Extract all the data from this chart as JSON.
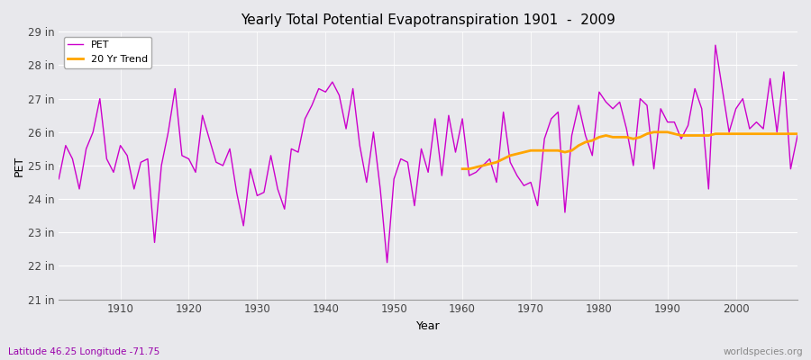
{
  "title": "Yearly Total Potential Evapotranspiration 1901  -  2009",
  "xlabel": "Year",
  "ylabel": "PET",
  "bottom_left": "Latitude 46.25 Longitude -71.75",
  "bottom_right": "worldspecies.org",
  "pet_color": "#CC00CC",
  "trend_color": "#FFA500",
  "bg_color": "#E8E8EC",
  "grid_color": "#FFFFFF",
  "ylim_min": 21,
  "ylim_max": 29,
  "years": [
    1901,
    1902,
    1903,
    1904,
    1905,
    1906,
    1907,
    1908,
    1909,
    1910,
    1911,
    1912,
    1913,
    1914,
    1915,
    1916,
    1917,
    1918,
    1919,
    1920,
    1921,
    1922,
    1923,
    1924,
    1925,
    1926,
    1927,
    1928,
    1929,
    1930,
    1931,
    1932,
    1933,
    1934,
    1935,
    1936,
    1937,
    1938,
    1939,
    1940,
    1941,
    1942,
    1943,
    1944,
    1945,
    1946,
    1947,
    1948,
    1949,
    1950,
    1951,
    1952,
    1953,
    1954,
    1955,
    1956,
    1957,
    1958,
    1959,
    1960,
    1961,
    1962,
    1963,
    1964,
    1965,
    1966,
    1967,
    1968,
    1969,
    1970,
    1971,
    1972,
    1973,
    1974,
    1975,
    1976,
    1977,
    1978,
    1979,
    1980,
    1981,
    1982,
    1983,
    1984,
    1985,
    1986,
    1987,
    1988,
    1989,
    1990,
    1991,
    1992,
    1993,
    1994,
    1995,
    1996,
    1997,
    1998,
    1999,
    2000,
    2001,
    2002,
    2003,
    2004,
    2005,
    2006,
    2007,
    2008,
    2009
  ],
  "pet_values": [
    24.6,
    25.6,
    25.2,
    24.3,
    25.5,
    26.0,
    27.0,
    25.2,
    24.8,
    25.6,
    25.3,
    24.3,
    25.1,
    25.2,
    22.7,
    25.0,
    26.0,
    27.3,
    25.3,
    25.2,
    24.8,
    26.5,
    25.8,
    25.1,
    25.0,
    25.5,
    24.2,
    23.2,
    24.9,
    24.1,
    24.2,
    25.3,
    24.3,
    23.7,
    25.5,
    25.4,
    26.4,
    26.8,
    27.3,
    27.2,
    27.5,
    27.1,
    26.1,
    27.3,
    25.6,
    24.5,
    26.0,
    24.3,
    22.1,
    24.6,
    25.2,
    25.1,
    23.8,
    25.5,
    24.8,
    26.4,
    24.7,
    26.5,
    25.4,
    26.4,
    24.7,
    24.8,
    25.0,
    25.2,
    24.5,
    26.6,
    25.1,
    24.7,
    24.4,
    24.5,
    23.8,
    25.8,
    26.4,
    26.6,
    23.6,
    25.9,
    26.8,
    25.9,
    25.3,
    27.2,
    26.9,
    26.7,
    26.9,
    26.1,
    25.0,
    27.0,
    26.8,
    24.9,
    26.7,
    26.3,
    26.3,
    25.8,
    26.2,
    27.3,
    26.7,
    24.3,
    28.6,
    27.3,
    26.0,
    26.7,
    27.0,
    26.1,
    26.3,
    26.1,
    27.6,
    26.0,
    27.8,
    24.9,
    25.9
  ],
  "trend_years": [
    1960,
    1961,
    1962,
    1963,
    1964,
    1965,
    1966,
    1967,
    1968,
    1969,
    1970,
    1971,
    1972,
    1973,
    1974,
    1975,
    1976,
    1977,
    1978,
    1979,
    1980,
    1981,
    1982,
    1983,
    1984,
    1985,
    1986,
    1987,
    1988,
    1989,
    1990,
    1991,
    1992,
    1993,
    1994,
    1995,
    1996,
    1997,
    1998,
    1999,
    2000,
    2001,
    2002,
    2003,
    2004,
    2005,
    2006,
    2007,
    2008,
    2009
  ],
  "trend_values": [
    24.9,
    24.9,
    24.95,
    25.0,
    25.05,
    25.1,
    25.2,
    25.3,
    25.35,
    25.4,
    25.45,
    25.45,
    25.45,
    25.45,
    25.45,
    25.4,
    25.45,
    25.6,
    25.7,
    25.75,
    25.85,
    25.9,
    25.85,
    25.85,
    25.85,
    25.8,
    25.85,
    25.95,
    26.0,
    26.0,
    26.0,
    25.95,
    25.9,
    25.9,
    25.9,
    25.9,
    25.9,
    25.95,
    25.95,
    25.95,
    25.95,
    25.95,
    25.95,
    25.95,
    25.95,
    25.95,
    25.95,
    25.95,
    25.95,
    25.95
  ]
}
